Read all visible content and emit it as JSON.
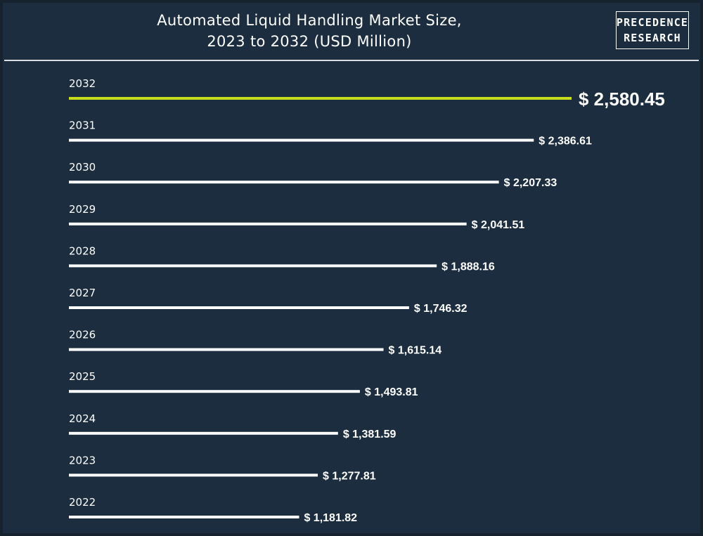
{
  "header": {
    "title_line1": "Automated Liquid Handling Market Size,",
    "title_line2": "2023 to 2032 (USD Million)",
    "logo_line1": "PRECEDENCE",
    "logo_line2": "RESEARCH"
  },
  "chart_data": {
    "type": "bar",
    "orientation": "horizontal",
    "title": "Automated Liquid Handling Market Size, 2023 to 2032 (USD Million)",
    "categories": [
      "2032",
      "2031",
      "2030",
      "2029",
      "2028",
      "2027",
      "2026",
      "2025",
      "2024",
      "2023",
      "2022"
    ],
    "values": [
      2580.45,
      2386.61,
      2207.33,
      2041.51,
      1888.16,
      1746.32,
      1615.14,
      1493.81,
      1381.59,
      1277.81,
      1181.82
    ],
    "value_labels": [
      "$ 2,580.45",
      "$ 2,386.61",
      "$ 2,207.33",
      "$ 2,041.51",
      "$ 1,888.16",
      "$ 1,746.32",
      "$ 1,615.14",
      "$ 1,493.81",
      "$ 1,381.59",
      "$ 1,277.81",
      "$ 1,181.82"
    ],
    "xlim": [
      0,
      2580.45
    ],
    "highlight_category": "2032",
    "colors": {
      "bar": "#ffffff",
      "highlight": "#c8dc1e",
      "background": "#1b2d3e"
    },
    "grid": false,
    "legend": "none"
  }
}
